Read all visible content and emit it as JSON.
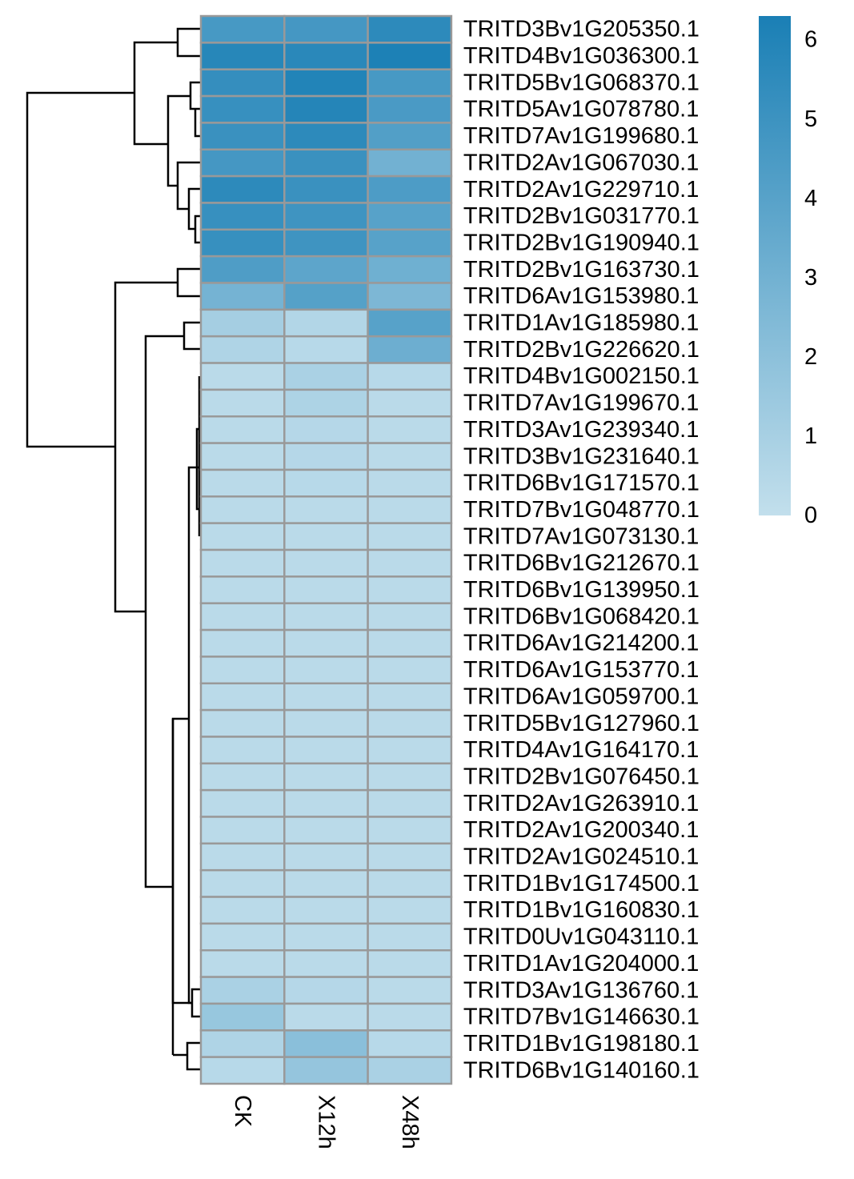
{
  "chart_data": {
    "type": "heatmap",
    "title": "",
    "columns": [
      "CK",
      "X12h",
      "X48h"
    ],
    "rows": [
      "TRITD3Bv1G205350.1",
      "TRITD4Bv1G036300.1",
      "TRITD5Bv1G068370.1",
      "TRITD5Av1G078780.1",
      "TRITD7Av1G199680.1",
      "TRITD2Av1G067030.1",
      "TRITD2Av1G229710.1",
      "TRITD2Bv1G031770.1",
      "TRITD2Bv1G190940.1",
      "TRITD2Bv1G163730.1",
      "TRITD6Av1G153980.1",
      "TRITD1Av1G185980.1",
      "TRITD2Bv1G226620.1",
      "TRITD4Bv1G002150.1",
      "TRITD7Av1G199670.1",
      "TRITD3Av1G239340.1",
      "TRITD3Bv1G231640.1",
      "TRITD6Bv1G171570.1",
      "TRITD7Bv1G048770.1",
      "TRITD7Av1G073130.1",
      "TRITD6Bv1G212670.1",
      "TRITD6Bv1G139950.1",
      "TRITD6Bv1G068420.1",
      "TRITD6Av1G214200.1",
      "TRITD6Av1G153770.1",
      "TRITD6Av1G059700.1",
      "TRITD5Bv1G127960.1",
      "TRITD4Av1G164170.1",
      "TRITD2Bv1G076450.1",
      "TRITD2Av1G263910.1",
      "TRITD2Av1G200340.1",
      "TRITD2Av1G024510.1",
      "TRITD1Bv1G174500.1",
      "TRITD1Bv1G160830.1",
      "TRITD0Uv1G043110.1",
      "TRITD1Av1G204000.1",
      "TRITD3Av1G136760.1",
      "TRITD7Bv1G146630.1",
      "TRITD1Bv1G198180.1",
      "TRITD6Bv1G140160.1"
    ],
    "values": [
      [
        4.6,
        4.7,
        5.6
      ],
      [
        5.8,
        5.7,
        6.2
      ],
      [
        5.3,
        6.0,
        4.6
      ],
      [
        5.2,
        5.9,
        4.5
      ],
      [
        5.1,
        5.6,
        4.2
      ],
      [
        4.7,
        5.1,
        3.0
      ],
      [
        5.6,
        5.1,
        4.4
      ],
      [
        5.2,
        4.9,
        4.0
      ],
      [
        5.2,
        4.9,
        4.0
      ],
      [
        4.3,
        3.8,
        3.1
      ],
      [
        2.9,
        4.1,
        2.6
      ],
      [
        1.1,
        0.6,
        4.0
      ],
      [
        0.7,
        0.4,
        3.2
      ],
      [
        0.3,
        0.9,
        0.4
      ],
      [
        0.3,
        0.8,
        0.3
      ],
      [
        0.3,
        0.5,
        0.3
      ],
      [
        0.3,
        0.5,
        0.3
      ],
      [
        0.3,
        0.4,
        0.3
      ],
      [
        0.3,
        0.3,
        0.3
      ],
      [
        0.3,
        0.3,
        0.3
      ],
      [
        0.3,
        0.3,
        0.3
      ],
      [
        0.3,
        0.3,
        0.3
      ],
      [
        0.3,
        0.3,
        0.3
      ],
      [
        0.3,
        0.3,
        0.3
      ],
      [
        0.3,
        0.3,
        0.3
      ],
      [
        0.3,
        0.3,
        0.3
      ],
      [
        0.3,
        0.3,
        0.3
      ],
      [
        0.3,
        0.3,
        0.3
      ],
      [
        0.3,
        0.3,
        0.3
      ],
      [
        0.3,
        0.3,
        0.3
      ],
      [
        0.3,
        0.3,
        0.3
      ],
      [
        0.3,
        0.3,
        0.3
      ],
      [
        0.3,
        0.3,
        0.3
      ],
      [
        0.3,
        0.3,
        0.3
      ],
      [
        0.3,
        0.3,
        0.3
      ],
      [
        0.3,
        0.3,
        0.3
      ],
      [
        0.9,
        0.5,
        0.3
      ],
      [
        1.6,
        0.3,
        0.3
      ],
      [
        0.7,
        2.1,
        0.4
      ],
      [
        0.4,
        1.7,
        0.9
      ]
    ],
    "color_scale": {
      "min": 0,
      "max": 6.3,
      "low_color": "#c2dfec",
      "high_color": "#1a7fb5",
      "ticks": [
        0,
        1,
        2,
        3,
        4,
        5,
        6
      ]
    },
    "cell_border_color": "#999999",
    "row_dendrogram": true,
    "legend": "right"
  }
}
